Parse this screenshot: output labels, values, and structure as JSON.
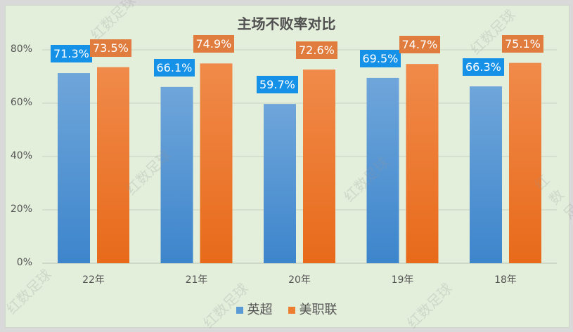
{
  "watermark": "红数足球",
  "colors": {
    "blue": "#5b9bd5",
    "orange": "#ed7d31",
    "blue_label": "#1591e8",
    "orange_label": "#e07d3e",
    "grid": "#c9d3c2"
  },
  "chart_data": {
    "type": "bar",
    "title": "主场不败率对比",
    "categories": [
      "22年",
      "21年",
      "20年",
      "19年",
      "18年"
    ],
    "series": [
      {
        "name": "英超",
        "values": [
          71.3,
          66.1,
          59.7,
          69.5,
          66.3
        ],
        "labels": [
          "71.3%",
          "66.1%",
          "59.7%",
          "69.5%",
          "66.3%"
        ]
      },
      {
        "name": "美职联",
        "values": [
          73.5,
          74.9,
          72.6,
          74.7,
          75.1
        ],
        "labels": [
          "73.5%",
          "74.9%",
          "72.6%",
          "74.7%",
          "75.1%"
        ]
      }
    ],
    "ylim": [
      0,
      80
    ],
    "yticks": [
      "0%",
      "20%",
      "40%",
      "60%",
      "80%"
    ],
    "grid": true,
    "legend": "bottom",
    "xlabel": "",
    "ylabel": ""
  }
}
